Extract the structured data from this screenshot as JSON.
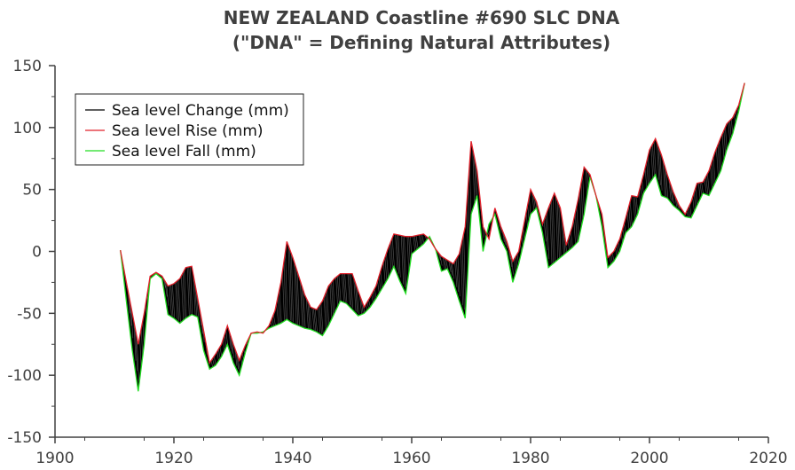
{
  "chart_data": {
    "type": "line",
    "title": [
      "NEW ZEALAND Coastline #690 SLC DNA",
      "(\"DNA\" = Defining Natural Attributes)"
    ],
    "xlabel": "",
    "ylabel": "",
    "xlim": [
      1900,
      2020
    ],
    "ylim": [
      -150,
      150
    ],
    "x_ticks": [
      1900,
      1920,
      1940,
      1960,
      1980,
      2000,
      2020
    ],
    "y_ticks": [
      150,
      100,
      50,
      0,
      -50,
      -100,
      -150
    ],
    "grid": false,
    "legend_position": "top-left",
    "colors": {
      "change": "#000000",
      "rise": "#e0202a",
      "fall": "#22dd22",
      "axis": "#404040"
    },
    "series": [
      {
        "name": "Sea level Rise (mm)",
        "x": [
          1911,
          1912,
          1913,
          1914,
          1915,
          1916,
          1917,
          1918,
          1919,
          1920,
          1921,
          1922,
          1923,
          1924,
          1925,
          1926,
          1927,
          1928,
          1929,
          1930,
          1931,
          1932,
          1933,
          1934,
          1935,
          1936,
          1937,
          1938,
          1939,
          1940,
          1941,
          1942,
          1943,
          1944,
          1945,
          1946,
          1947,
          1948,
          1949,
          1950,
          1951,
          1952,
          1953,
          1954,
          1955,
          1956,
          1957,
          1958,
          1959,
          1960,
          1961,
          1962,
          1963,
          1964,
          1965,
          1966,
          1967,
          1968,
          1969,
          1970,
          1971,
          1972,
          1973,
          1974,
          1975,
          1976,
          1977,
          1978,
          1979,
          1980,
          1981,
          1982,
          1983,
          1984,
          1985,
          1986,
          1987,
          1988,
          1989,
          1990,
          1991,
          1992,
          1993,
          1994,
          1995,
          1996,
          1997,
          1998,
          1999,
          2000,
          2001,
          2002,
          2003,
          2004,
          2005,
          2006,
          2007,
          2008,
          2009,
          2010,
          2011,
          2012,
          2013,
          2014,
          2015,
          2016
        ],
        "y": [
          1,
          -25,
          -50,
          -75,
          -50,
          -20,
          -17,
          -20,
          -28,
          -26,
          -22,
          -13,
          -12,
          -38,
          -64,
          -90,
          -83,
          -75,
          -60,
          -75,
          -88,
          -76,
          -66,
          -65,
          -66,
          -60,
          -48,
          -25,
          8,
          -5,
          -20,
          -35,
          -45,
          -47,
          -40,
          -28,
          -22,
          -18,
          -18,
          -18,
          -32,
          -45,
          -37,
          -28,
          -12,
          2,
          14,
          13,
          12,
          12,
          13,
          14,
          10,
          2,
          -4,
          -7,
          -10,
          -2,
          20,
          89,
          65,
          20,
          10,
          35,
          20,
          8,
          -8,
          0,
          25,
          50,
          40,
          22,
          35,
          47,
          35,
          5,
          20,
          42,
          68,
          62,
          45,
          30,
          -5,
          0,
          10,
          27,
          45,
          44,
          62,
          82,
          91,
          78,
          62,
          48,
          37,
          30,
          40,
          55,
          56,
          65,
          80,
          92,
          103,
          108,
          118,
          136
        ]
      },
      {
        "name": "Sea level Fall (mm)",
        "x": [
          1911,
          1912,
          1913,
          1914,
          1915,
          1916,
          1917,
          1918,
          1919,
          1920,
          1921,
          1922,
          1923,
          1924,
          1925,
          1926,
          1927,
          1928,
          1929,
          1930,
          1931,
          1932,
          1933,
          1934,
          1935,
          1936,
          1937,
          1938,
          1939,
          1940,
          1941,
          1942,
          1943,
          1944,
          1945,
          1946,
          1947,
          1948,
          1949,
          1950,
          1951,
          1952,
          1953,
          1954,
          1955,
          1956,
          1957,
          1958,
          1959,
          1960,
          1961,
          1962,
          1963,
          1964,
          1965,
          1966,
          1967,
          1968,
          1969,
          1970,
          1971,
          1972,
          1973,
          1974,
          1975,
          1976,
          1977,
          1978,
          1979,
          1980,
          1981,
          1982,
          1983,
          1984,
          1985,
          1986,
          1987,
          1988,
          1989,
          1990,
          1991,
          1992,
          1993,
          1994,
          1995,
          1996,
          1997,
          1998,
          1999,
          2000,
          2001,
          2002,
          2003,
          2004,
          2005,
          2006,
          2007,
          2008,
          2009,
          2010,
          2011,
          2012,
          2013,
          2014,
          2015,
          2016
        ],
        "y": [
          1,
          -40,
          -80,
          -113,
          -75,
          -22,
          -18,
          -22,
          -51,
          -54,
          -58,
          -54,
          -51,
          -53,
          -80,
          -95,
          -92,
          -85,
          -75,
          -90,
          -100,
          -82,
          -66,
          -66,
          -65,
          -62,
          -60,
          -58,
          -55,
          -58,
          -60,
          -62,
          -63,
          -65,
          -68,
          -60,
          -50,
          -40,
          -42,
          -47,
          -52,
          -50,
          -45,
          -38,
          -30,
          -22,
          -12,
          -24,
          -34,
          -2,
          2,
          6,
          12,
          2,
          -16,
          -14,
          -25,
          -40,
          -54,
          30,
          45,
          0,
          22,
          30,
          10,
          0,
          -25,
          -10,
          10,
          30,
          35,
          15,
          -13,
          -9,
          -5,
          -1,
          3,
          8,
          30,
          60,
          45,
          20,
          -13,
          -8,
          0,
          15,
          20,
          30,
          47,
          55,
          62,
          45,
          43,
          37,
          33,
          28,
          27,
          37,
          47,
          45,
          55,
          65,
          82,
          95,
          113,
          136
        ]
      }
    ],
    "legend": [
      "Sea level Change (mm)",
      "Sea level Rise (mm)",
      "Sea level Fall (mm)"
    ]
  }
}
